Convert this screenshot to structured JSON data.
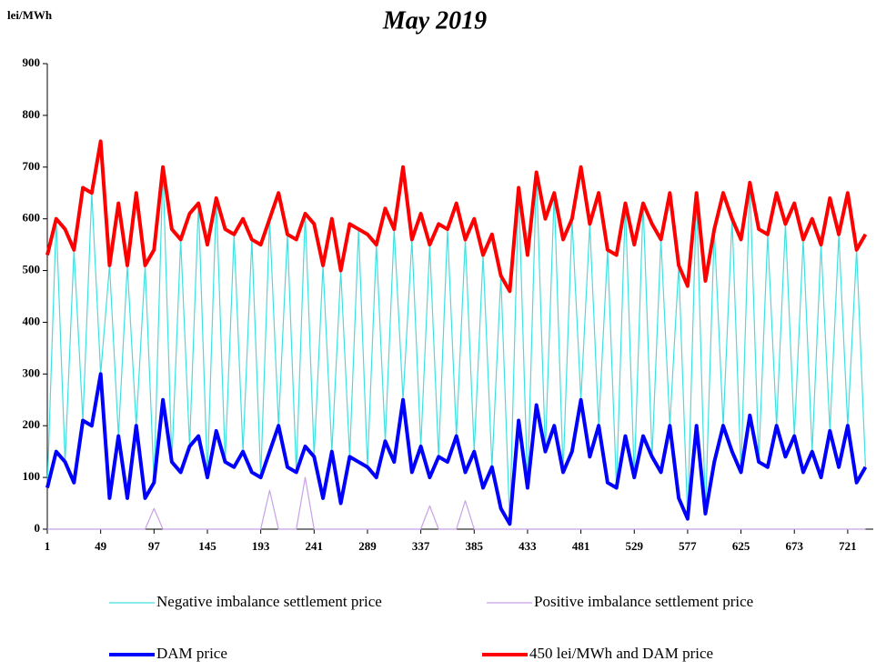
{
  "chart_data": {
    "type": "line",
    "title": "May 2019",
    "y_label": "lei/MWh",
    "x": [
      1,
      9,
      17,
      25,
      33,
      41,
      49,
      57,
      65,
      73,
      81,
      89,
      97,
      105,
      113,
      121,
      129,
      137,
      145,
      153,
      161,
      169,
      177,
      185,
      193,
      201,
      209,
      217,
      225,
      233,
      241,
      249,
      257,
      265,
      273,
      281,
      289,
      297,
      305,
      313,
      321,
      329,
      337,
      345,
      353,
      361,
      369,
      377,
      385,
      393,
      401,
      409,
      417,
      425,
      433,
      441,
      449,
      457,
      465,
      473,
      481,
      489,
      497,
      505,
      513,
      521,
      529,
      537,
      545,
      553,
      561,
      569,
      577,
      585,
      593,
      601,
      609,
      617,
      625,
      633,
      641,
      649,
      657,
      665,
      673,
      681,
      689,
      697,
      705,
      713,
      721,
      729,
      737
    ],
    "series": [
      {
        "name": "Negative imbalance settlement price",
        "color": "#40e0e0",
        "values": [
          80,
          600,
          130,
          540,
          210,
          650,
          300,
          510,
          180,
          510,
          200,
          510,
          90,
          700,
          130,
          560,
          160,
          630,
          100,
          640,
          130,
          570,
          150,
          560,
          100,
          600,
          200,
          570,
          110,
          610,
          140,
          510,
          150,
          500,
          140,
          580,
          120,
          550,
          170,
          580,
          250,
          560,
          160,
          550,
          140,
          580,
          180,
          560,
          150,
          530,
          120,
          490,
          10,
          660,
          80,
          690,
          150,
          650,
          110,
          600,
          250,
          590,
          200,
          540,
          80,
          630,
          100,
          630,
          140,
          560,
          200,
          510,
          20,
          650,
          30,
          580,
          200,
          600,
          110,
          670,
          130,
          570,
          200,
          590,
          180,
          560,
          150,
          550,
          190,
          570,
          200,
          540,
          120
        ]
      },
      {
        "name": "Positive imbalance settlement price",
        "color": "#c8a2e8",
        "values": [
          0,
          0,
          0,
          0,
          0,
          0,
          0,
          0,
          0,
          0,
          0,
          0,
          40,
          0,
          0,
          0,
          0,
          0,
          0,
          0,
          0,
          0,
          0,
          0,
          0,
          75,
          0,
          0,
          0,
          100,
          0,
          0,
          0,
          0,
          0,
          0,
          0,
          0,
          0,
          0,
          0,
          0,
          0,
          45,
          0,
          0,
          0,
          55,
          0,
          0,
          0,
          0,
          0,
          0,
          0,
          0,
          0,
          0,
          0,
          0,
          0,
          0,
          0,
          0,
          0,
          0,
          0,
          0,
          0,
          0,
          0,
          0,
          0,
          0,
          0,
          0,
          0,
          0,
          0,
          0,
          0,
          0,
          0,
          0,
          0,
          0,
          0,
          0,
          0,
          0,
          0,
          0,
          0
        ]
      },
      {
        "name": "DAM price",
        "color": "#0000ff",
        "values": [
          80,
          150,
          130,
          90,
          210,
          200,
          300,
          60,
          180,
          60,
          200,
          60,
          90,
          250,
          130,
          110,
          160,
          180,
          100,
          190,
          130,
          120,
          150,
          110,
          100,
          150,
          200,
          120,
          110,
          160,
          140,
          60,
          150,
          50,
          140,
          130,
          120,
          100,
          170,
          130,
          250,
          110,
          160,
          100,
          140,
          130,
          180,
          110,
          150,
          80,
          120,
          40,
          10,
          210,
          80,
          240,
          150,
          200,
          110,
          150,
          250,
          140,
          200,
          90,
          80,
          180,
          100,
          180,
          140,
          110,
          200,
          60,
          20,
          200,
          30,
          130,
          200,
          150,
          110,
          220,
          130,
          120,
          200,
          140,
          180,
          110,
          150,
          100,
          190,
          120,
          200,
          90,
          120
        ]
      },
      {
        "name": "450 lei/MWh and DAM price",
        "color": "#ff0000",
        "values": [
          530,
          600,
          580,
          540,
          660,
          650,
          750,
          510,
          630,
          510,
          650,
          510,
          540,
          700,
          580,
          560,
          610,
          630,
          550,
          640,
          580,
          570,
          600,
          560,
          550,
          600,
          650,
          570,
          560,
          610,
          590,
          510,
          600,
          500,
          590,
          580,
          570,
          550,
          620,
          580,
          700,
          560,
          610,
          550,
          590,
          580,
          630,
          560,
          600,
          530,
          570,
          490,
          460,
          660,
          530,
          690,
          600,
          650,
          560,
          600,
          700,
          590,
          650,
          540,
          530,
          630,
          550,
          630,
          590,
          560,
          650,
          510,
          470,
          650,
          480,
          580,
          650,
          600,
          560,
          670,
          580,
          570,
          650,
          590,
          630,
          560,
          600,
          550,
          640,
          570,
          650,
          540,
          570
        ]
      }
    ],
    "xlim": [
      1,
      744
    ],
    "ylim": [
      0,
      900
    ],
    "xticks": [
      1,
      49,
      97,
      145,
      193,
      241,
      289,
      337,
      385,
      433,
      481,
      529,
      577,
      625,
      673,
      721
    ],
    "yticks": [
      0,
      100,
      200,
      300,
      400,
      500,
      600,
      700,
      800,
      900
    ]
  }
}
